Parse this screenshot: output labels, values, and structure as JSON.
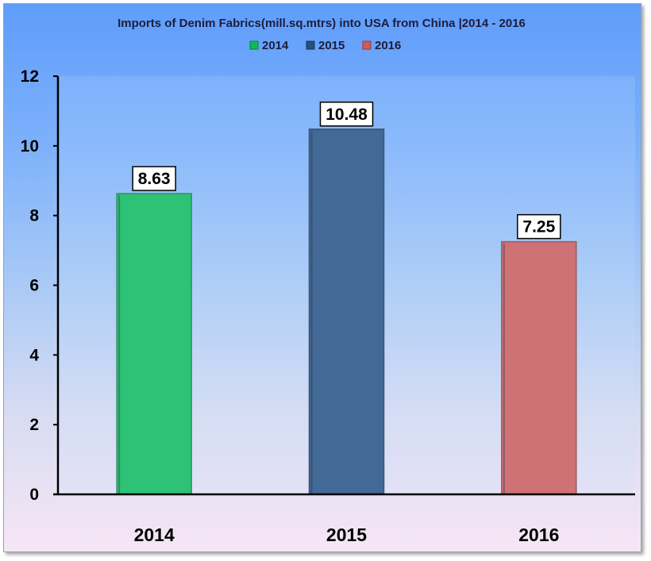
{
  "chart_data": {
    "type": "bar",
    "title": "Imports of Denim Fabrics(mill.sq.mtrs) into USA from China |2014 - 2016",
    "categories": [
      "2014",
      "2015",
      "2016"
    ],
    "values": [
      8.63,
      10.48,
      7.25
    ],
    "value_labels": [
      "8.63",
      "10.48",
      "7.25"
    ],
    "legend": [
      "2014",
      "2015",
      "2016"
    ],
    "colors": [
      "#0cbb57",
      "#274f80",
      "#d05a57"
    ],
    "ylim": [
      0,
      12
    ],
    "yticks": [
      0,
      2,
      4,
      6,
      8,
      10,
      12
    ],
    "xlabel": "",
    "ylabel": "",
    "legend_position": "top",
    "grid": false
  }
}
